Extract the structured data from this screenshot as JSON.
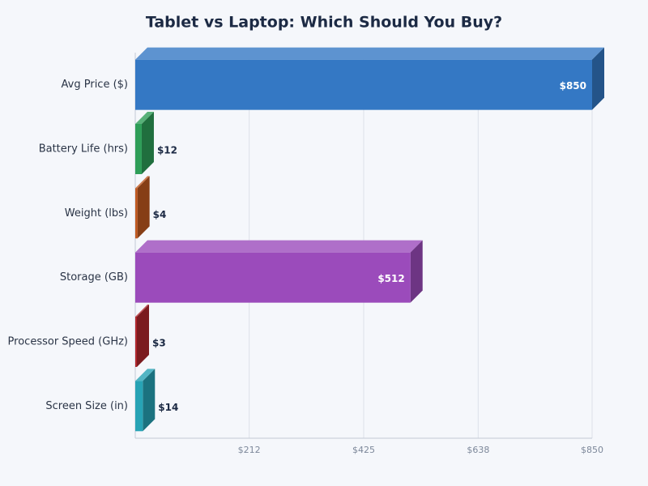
{
  "chart_data": {
    "type": "bar",
    "orientation": "horizontal",
    "title": "Tablet vs Laptop: Which Should You Buy?",
    "categories": [
      "Avg Price ($)",
      "Battery Life (hrs)",
      "Weight (lbs)",
      "Storage (GB)",
      "Processor Speed (GHz)",
      "Screen Size (in)"
    ],
    "values": [
      850,
      12,
      4,
      512,
      3,
      14
    ],
    "value_labels": [
      "$850",
      "$12",
      "$4",
      "$512",
      "$3",
      "$14"
    ],
    "colors": [
      "#3478c4",
      "#2e9e58",
      "#c0581f",
      "#9b4bbb",
      "#b0262c",
      "#27a3b5"
    ],
    "xlim": [
      0,
      850
    ],
    "xticks": [
      {
        "value": 212,
        "label": "$212"
      },
      {
        "value": 425,
        "label": "$425"
      },
      {
        "value": 638,
        "label": "$638"
      },
      {
        "value": 850,
        "label": "$850"
      }
    ],
    "grid": true
  }
}
